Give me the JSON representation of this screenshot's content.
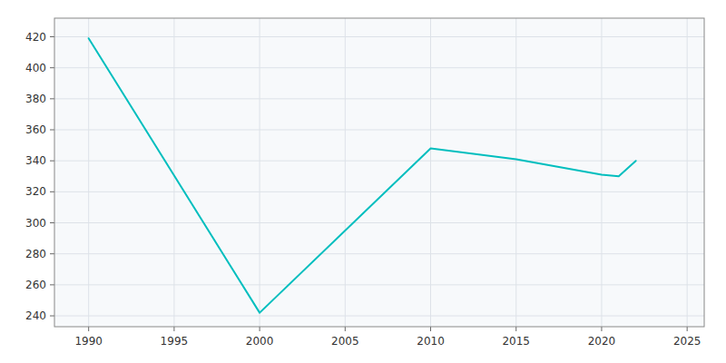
{
  "chart_data": {
    "type": "line",
    "x": [
      1990,
      2000,
      2010,
      2015,
      2020,
      2021,
      2022
    ],
    "values": [
      419,
      242,
      348,
      341,
      331,
      330,
      340
    ],
    "color": "#00BEBE",
    "xlim": [
      1988,
      2026
    ],
    "ylim": [
      233,
      432
    ],
    "xticks": [
      1990,
      1995,
      2000,
      2005,
      2010,
      2015,
      2020,
      2025
    ],
    "yticks": [
      240,
      260,
      280,
      300,
      320,
      340,
      360,
      380,
      400,
      420
    ],
    "grid": true
  }
}
